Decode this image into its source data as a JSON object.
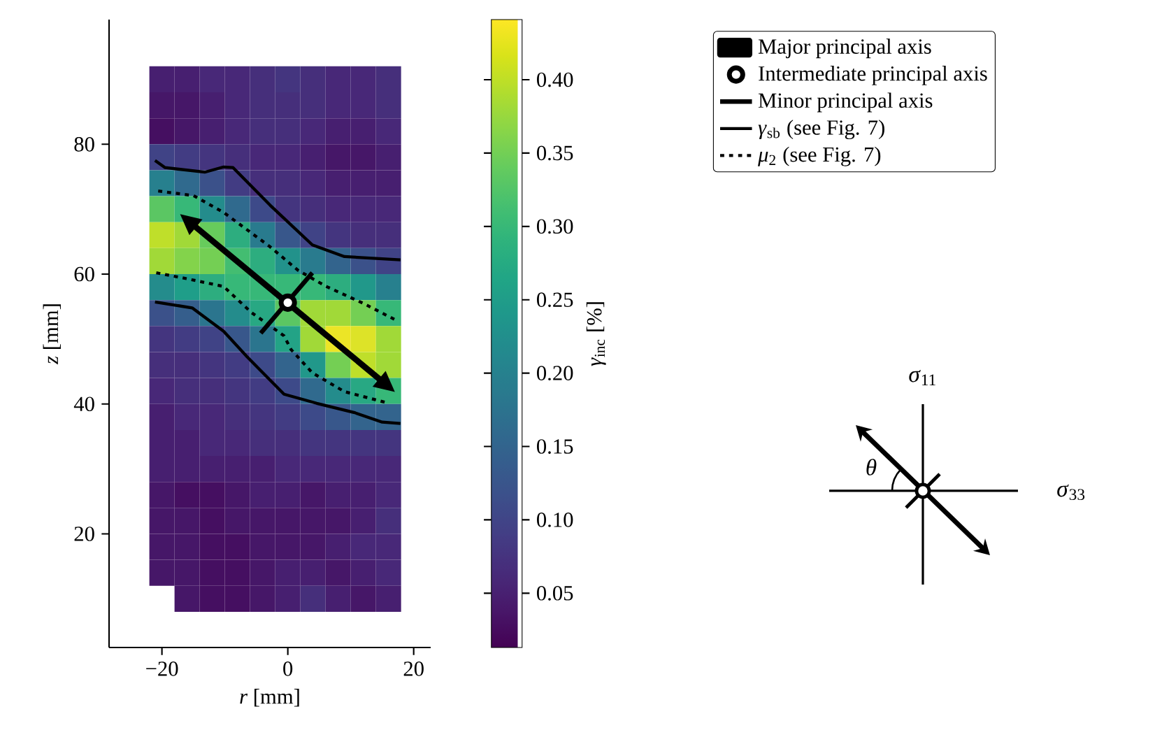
{
  "chart_data": {
    "type": "heatmap",
    "xlabel": "*r* [mm]",
    "ylabel": "*z* [mm]",
    "clabel": "*γ*$_{inc}$ [%]",
    "xlim": [
      -28.4,
      22.7
    ],
    "ylim": [
      2.5,
      99.2
    ],
    "xticks": [
      {
        "value": -20,
        "label": "−20"
      },
      0,
      20
    ],
    "yticks": [
      20,
      40,
      60,
      80
    ],
    "clim": [
      0.013,
      0.441
    ],
    "cticks": [
      0.05,
      {
        "value": 0.1,
        "label": "0.10"
      },
      0.15,
      {
        "value": 0.2,
        "label": "0.20"
      },
      0.25,
      {
        "value": 0.3,
        "label": "0.30"
      },
      0.35,
      {
        "value": 0.4,
        "label": "0.40"
      }
    ],
    "x": [
      -20,
      -16,
      -12,
      -8,
      -4,
      0,
      4,
      8,
      12,
      16
    ],
    "y": [
      90,
      86,
      82,
      78,
      74,
      70,
      66,
      62,
      58,
      54,
      50,
      46,
      42,
      38,
      34,
      30,
      26,
      22,
      18,
      14,
      10
    ],
    "cells": [
      [
        0.05,
        0.05,
        0.06,
        0.06,
        0.07,
        0.08,
        0.07,
        0.06,
        0.06,
        0.07
      ],
      [
        0.04,
        0.04,
        0.05,
        0.06,
        0.07,
        0.07,
        0.07,
        0.06,
        0.06,
        0.07
      ],
      [
        0.03,
        0.04,
        0.05,
        0.06,
        0.07,
        0.07,
        0.06,
        0.05,
        0.05,
        0.06
      ],
      [
        0.1,
        0.09,
        0.08,
        0.07,
        0.06,
        0.06,
        0.05,
        0.04,
        0.04,
        0.05
      ],
      [
        0.2,
        0.16,
        0.12,
        0.09,
        0.07,
        0.07,
        0.06,
        0.05,
        0.05,
        0.05
      ],
      [
        0.33,
        0.3,
        0.22,
        0.16,
        0.11,
        0.08,
        0.07,
        0.06,
        0.06,
        0.06
      ],
      [
        0.4,
        0.38,
        0.34,
        0.28,
        0.19,
        0.13,
        0.1,
        0.08,
        0.07,
        0.07
      ],
      [
        0.38,
        0.36,
        0.35,
        0.31,
        0.28,
        0.23,
        0.19,
        0.15,
        0.12,
        0.1
      ],
      [
        0.22,
        0.25,
        0.28,
        0.3,
        0.3,
        0.3,
        0.3,
        0.28,
        0.24,
        0.2
      ],
      [
        0.12,
        0.14,
        0.18,
        0.22,
        0.27,
        0.33,
        0.38,
        0.38,
        0.35,
        0.3
      ],
      [
        0.08,
        0.09,
        0.1,
        0.13,
        0.18,
        0.26,
        0.38,
        0.43,
        0.42,
        0.38
      ],
      [
        0.07,
        0.07,
        0.08,
        0.09,
        0.11,
        0.15,
        0.24,
        0.35,
        0.4,
        0.38
      ],
      [
        0.06,
        0.07,
        0.07,
        0.08,
        0.09,
        0.11,
        0.16,
        0.22,
        0.27,
        0.3
      ],
      [
        0.05,
        0.06,
        0.06,
        0.07,
        0.08,
        0.09,
        0.11,
        0.13,
        0.15,
        0.15
      ],
      [
        0.05,
        0.05,
        0.06,
        0.06,
        0.07,
        0.07,
        0.08,
        0.08,
        0.08,
        0.08
      ],
      [
        0.05,
        0.05,
        0.05,
        0.05,
        0.05,
        0.06,
        0.06,
        0.06,
        0.06,
        0.06
      ],
      [
        0.04,
        0.03,
        0.03,
        0.04,
        0.05,
        0.05,
        0.04,
        0.05,
        0.05,
        0.06
      ],
      [
        0.04,
        0.04,
        0.03,
        0.04,
        0.04,
        0.04,
        0.04,
        0.04,
        0.05,
        0.07
      ],
      [
        0.04,
        0.04,
        0.03,
        0.03,
        0.04,
        0.04,
        0.04,
        0.05,
        0.06,
        0.06
      ],
      [
        0.04,
        0.04,
        0.03,
        0.03,
        0.04,
        0.05,
        0.05,
        0.04,
        0.05,
        0.06
      ],
      [
        null,
        0.04,
        0.03,
        0.03,
        0.04,
        0.05,
        0.07,
        0.05,
        0.04,
        0.05
      ]
    ],
    "series": [
      {
        "type": "line",
        "name": "Major principal axis",
        "color": "#000000",
        "x": [
          -16.2,
          16.1
        ],
        "values": [
          68.5,
          42.6
        ]
      },
      {
        "type": "scatter",
        "name": "Intermediate principal axis",
        "color": "#000000",
        "marker": "circle",
        "x": [
          0
        ],
        "values": [
          55.6
        ]
      },
      {
        "type": "line",
        "name": "Minor principal axis",
        "color": "#000000",
        "x": [
          -4.3,
          3.9
        ],
        "values": [
          50.9,
          60.2
        ]
      },
      {
        "type": "line",
        "name": "*γ*$_{sb}$ (see Fig. 7)",
        "color": "#000000",
        "line_style": "solid",
        "x": [
          -21.1,
          -19.5,
          -13.2,
          -10.2,
          -8.7,
          -2.8,
          3.9,
          9.0,
          17.9,
          null,
          -21.1,
          -15.2,
          -10.2,
          -6.5,
          -0.6,
          4.6,
          10.5,
          15.0,
          17.9
        ],
        "values": [
          77.5,
          76.4,
          75.7,
          76.5,
          76.4,
          70.6,
          64.5,
          62.7,
          62.2,
          null,
          55.7,
          54.8,
          51.2,
          47.3,
          41.5,
          40.1,
          38.7,
          37.2,
          37.0
        ]
      },
      {
        "type": "line",
        "name": "*μ*$_{2}$ (see Fig. 7)",
        "color": "#000000",
        "line_style": "dotted",
        "x": [
          -20.6,
          -15.0,
          -10.2,
          -2.8,
          1.6,
          6.1,
          12.0,
          17.6,
          null,
          -20.9,
          -16.1,
          -10.2,
          -5.8,
          -0.6,
          0.5,
          3.9,
          9.0,
          16.1
        ],
        "values": [
          72.8,
          72.1,
          69.5,
          64.2,
          60.6,
          58.1,
          55.5,
          52.7,
          null,
          60.2,
          59.3,
          58.1,
          54.1,
          50.5,
          48.4,
          44.8,
          41.9,
          40.1
        ]
      }
    ],
    "legend": "right",
    "annotations": [
      "*σ*$_{11}$",
      "*σ*$_{33}$",
      "*θ*"
    ]
  }
}
